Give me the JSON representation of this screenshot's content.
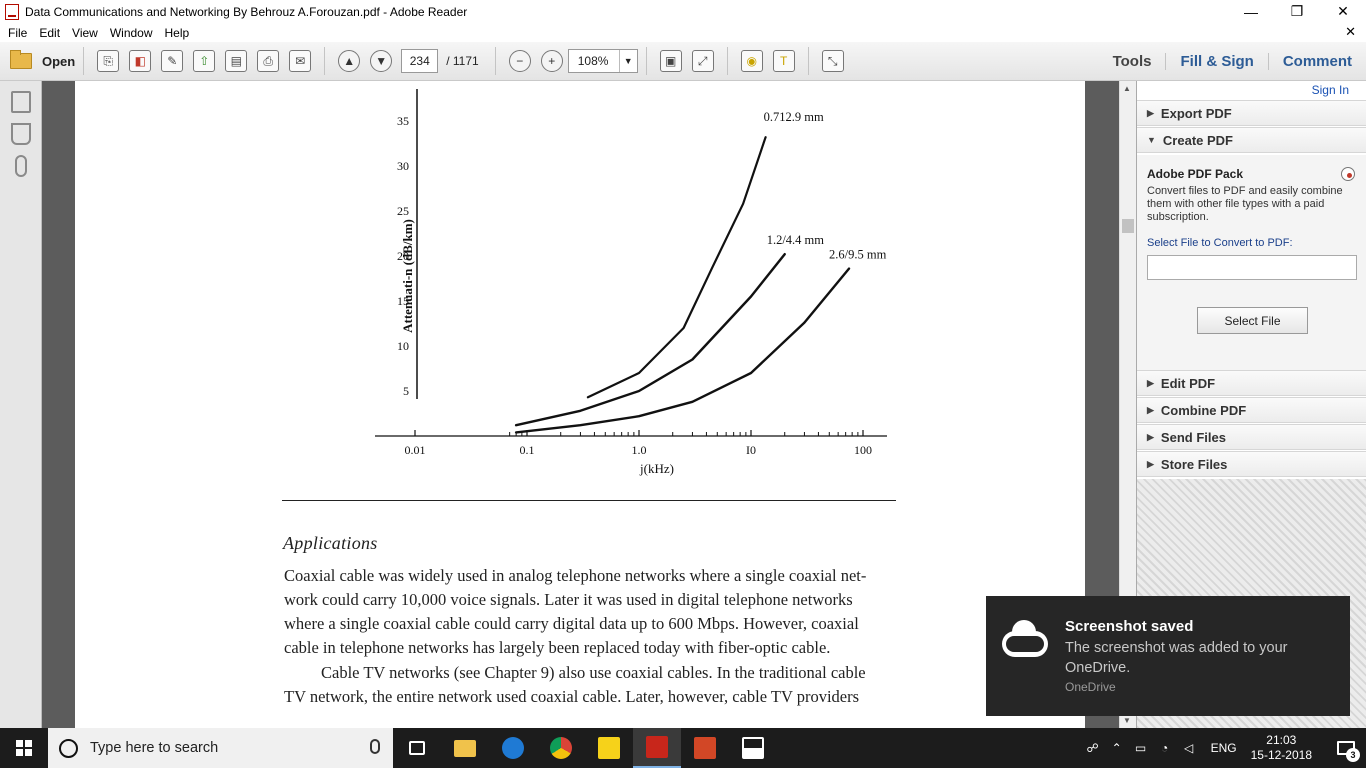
{
  "window": {
    "title": "Data Communications and Networking By Behrouz A.Forouzan.pdf - Adobe Reader",
    "minimize": "—",
    "restore": "❐",
    "close": "✕"
  },
  "menu": {
    "items": [
      "File",
      "Edit",
      "View",
      "Window",
      "Help"
    ],
    "close_doc": "✕"
  },
  "toolbar": {
    "open_label": "Open",
    "page_current": "234",
    "page_total": "/  1171",
    "zoom": "108%",
    "tools_label": "Tools",
    "fill_sign_label": "Fill & Sign",
    "comment_label": "Comment"
  },
  "right_panel": {
    "sign_in": "Sign In",
    "sections": [
      {
        "label": "Export PDF",
        "expanded": false
      },
      {
        "label": "Create PDF",
        "expanded": true
      },
      {
        "label": "Edit PDF",
        "expanded": false
      },
      {
        "label": "Combine PDF",
        "expanded": false
      },
      {
        "label": "Send Files",
        "expanded": false
      },
      {
        "label": "Store Files",
        "expanded": false
      }
    ],
    "create_pdf": {
      "title": "Adobe PDF Pack",
      "description": "Convert files to PDF and easily combine them with other file types with a paid subscription.",
      "select_label": "Select File to Convert to PDF:",
      "select_button": "Select File"
    }
  },
  "document": {
    "heading": "Applications",
    "paragraphs": [
      "Coaxial cable was widely used in analog telephone networks where a single coaxial net-",
      "work could carry  10,000 voice signals. Later it was used in digital telephone networks",
      "where a single coaxial cable could carry digital data up to 600 Mbps. However, coaxial",
      "cable in telephone networks has largely been replaced today with fiber-optic cable.",
      "Cable TV networks (see Chapter 9) also use coaxial cables. In the traditional cable",
      "TV network, the entire network used coaxial cable. Later, however, cable TV providers"
    ]
  },
  "chart_data": {
    "type": "line",
    "xlabel": "j(kHz)",
    "ylabel": "Attenuati-n (dB/km)",
    "x_scale": "log",
    "xlim": [
      0.01,
      100
    ],
    "ylim": [
      0,
      35
    ],
    "x_tick_labels": [
      "0.01",
      "0.1",
      "1.0",
      "I0",
      "100"
    ],
    "x_ticks": [
      0.01,
      0.1,
      1.0,
      10,
      100
    ],
    "y_ticks": [
      5,
      10,
      15,
      20,
      25,
      30,
      35
    ],
    "y_tick_labels": [
      "5",
      "10",
      "15",
      "20",
      "25",
      "30",
      "35"
    ],
    "grid": false,
    "series": [
      {
        "name": "0.712.9 mm",
        "x": [
          0.35,
          1.0,
          2.5,
          4.5,
          8.5,
          13.5
        ],
        "y": [
          4.3,
          7.0,
          12.0,
          18.7,
          25.8,
          33.2
        ]
      },
      {
        "name": "1.2/4.4 mm",
        "x": [
          0.08,
          0.3,
          1.0,
          3.0,
          10.0,
          20.0
        ],
        "y": [
          1.2,
          2.8,
          5.0,
          8.5,
          15.5,
          20.2
        ]
      },
      {
        "name": "2.6/9.5 mm",
        "x": [
          0.08,
          0.3,
          1.0,
          3.0,
          10.0,
          30.0,
          75.0
        ],
        "y": [
          0.4,
          1.2,
          2.2,
          3.8,
          7.0,
          12.6,
          18.6
        ]
      }
    ]
  },
  "toast": {
    "title": "Screenshot saved",
    "message": "The screenshot was added to your OneDrive.",
    "source": "OneDrive"
  },
  "taskbar": {
    "search_placeholder": "Type here to search",
    "apps": [
      {
        "name": "task-view",
        "color": "#ffffff"
      },
      {
        "name": "file-explorer",
        "color": "#f0c24b"
      },
      {
        "name": "edge",
        "color": "#1f7ad4"
      },
      {
        "name": "chrome",
        "color": "#3fa34d"
      },
      {
        "name": "sticky-notes",
        "color": "#f6d21a"
      },
      {
        "name": "adobe-reader",
        "color": "#c8261b"
      },
      {
        "name": "powerpoint",
        "color": "#d24726"
      },
      {
        "name": "photos",
        "color": "#ffffff"
      }
    ],
    "language": "ENG",
    "time": "21:03",
    "date": "15-12-2018",
    "notifications": "3"
  }
}
